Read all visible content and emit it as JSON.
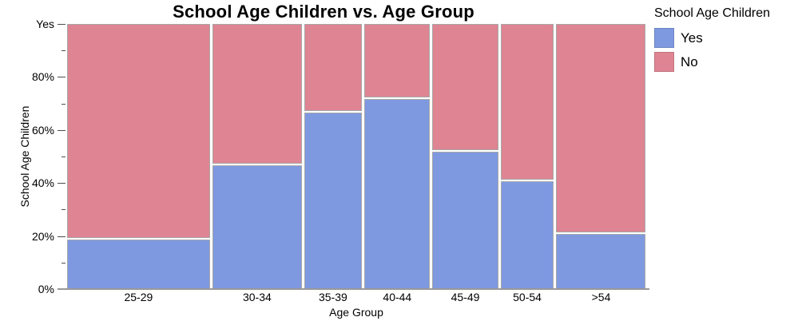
{
  "title": "School Age Children vs. Age Group",
  "axes": {
    "x_title": "Age Group",
    "y_title": "School Age Children",
    "y_ticks": [
      {
        "value": 0,
        "label": "0%"
      },
      {
        "value": 20,
        "label": "20%"
      },
      {
        "value": 40,
        "label": "40%"
      },
      {
        "value": 60,
        "label": "60%"
      },
      {
        "value": 80,
        "label": "80%"
      },
      {
        "value": 100,
        "label": "Yes"
      }
    ],
    "y_minor_ticks": [
      10,
      30,
      50,
      70,
      90
    ]
  },
  "legend": {
    "title": "School Age Children",
    "entries": [
      {
        "label": "Yes",
        "color": "#7E99E0"
      },
      {
        "label": "No",
        "color": "#DE8492"
      }
    ]
  },
  "colors": {
    "yes_fill": "#7E99E0",
    "no_fill": "#DE8492",
    "segment_border": "#A8A8A8",
    "axis_line": "#999999",
    "tick": "#4D4D4D",
    "text": "#000000",
    "background": "#FFFFFF"
  },
  "chart_data": {
    "type": "mosaic",
    "title": "School Age Children vs. Age Group",
    "xlabel": "Age Group",
    "ylabel": "School Age Children",
    "categories": [
      "25-29",
      "30-34",
      "35-39",
      "40-44",
      "45-49",
      "50-54",
      ">54"
    ],
    "column_width_pct": [
      25.1,
      15.7,
      10.4,
      11.7,
      11.7,
      9.6,
      15.8
    ],
    "series": [
      {
        "name": "Yes",
        "color": "#7E99E0",
        "values_pct": [
          19,
          47,
          67,
          72,
          52,
          41,
          21
        ]
      },
      {
        "name": "No",
        "color": "#DE8492",
        "values_pct": [
          81,
          53,
          33,
          28,
          48,
          59,
          79
        ]
      }
    ],
    "ylim": [
      0,
      100
    ],
    "y_tick_top_label": "Yes",
    "legend_position": "right",
    "grid": false
  }
}
